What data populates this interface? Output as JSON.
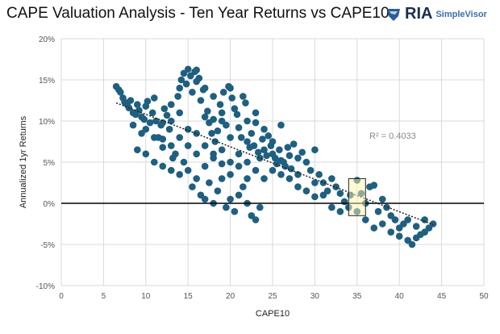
{
  "header": {
    "title": "CAPE Valuation Analysis - Ten Year Returns vs CAPE10",
    "brand": "RIA",
    "brand_sub": "SimpleVisor"
  },
  "chart_data": {
    "type": "scatter",
    "title": "CAPE Valuation Analysis - Ten Year Returns vs CAPE10",
    "xlabel": "CAPE10",
    "ylabel": "Annualized 1yr Returns",
    "xlim": [
      0,
      50
    ],
    "ylim": [
      -10,
      20
    ],
    "xticks": [
      0,
      5,
      10,
      15,
      20,
      25,
      30,
      35,
      40,
      45,
      50
    ],
    "yticks": [
      -10,
      -5,
      0,
      5,
      10,
      15,
      20
    ],
    "ytick_labels": [
      "-10%",
      "-5%",
      "0%",
      "5%",
      "10%",
      "15%",
      "20%"
    ],
    "grid": true,
    "point_color": "#1f5f80",
    "trendline": {
      "type": "linear",
      "x": [
        6.5,
        44
      ],
      "y": [
        12.2,
        -2.6
      ],
      "r2_label": "R² = 0.4033"
    },
    "highlight_box": {
      "x": [
        34,
        36
      ],
      "y": [
        -1.5,
        3
      ]
    },
    "points": [
      [
        6.5,
        14.2
      ],
      [
        6.8,
        13.8
      ],
      [
        7,
        13.5
      ],
      [
        7.3,
        12.8
      ],
      [
        7.5,
        12.3
      ],
      [
        7.8,
        12
      ],
      [
        8,
        11.6
      ],
      [
        8.2,
        12.5
      ],
      [
        8.5,
        11
      ],
      [
        8.8,
        10.8
      ],
      [
        9,
        12
      ],
      [
        9.2,
        11.3
      ],
      [
        9.5,
        10.5
      ],
      [
        9.8,
        10.2
      ],
      [
        10,
        11.8
      ],
      [
        10.2,
        12.4
      ],
      [
        10.5,
        9.8
      ],
      [
        10.8,
        11
      ],
      [
        11,
        12.8
      ],
      [
        11.2,
        10
      ],
      [
        11.5,
        8
      ],
      [
        11.8,
        9.5
      ],
      [
        12,
        7.8
      ],
      [
        12.2,
        11.5
      ],
      [
        12.5,
        10.7
      ],
      [
        12.8,
        9
      ],
      [
        13,
        12
      ],
      [
        13.2,
        5.5
      ],
      [
        13.5,
        6
      ],
      [
        13.8,
        13
      ],
      [
        14,
        14
      ],
      [
        14.2,
        15
      ],
      [
        14.5,
        15.8
      ],
      [
        14.8,
        14.5
      ],
      [
        15,
        16.3
      ],
      [
        15.3,
        15.5
      ],
      [
        15.5,
        13.5
      ],
      [
        15.8,
        16
      ],
      [
        16,
        14.8
      ],
      [
        16.3,
        15.2
      ],
      [
        16.5,
        12.5
      ],
      [
        16.8,
        13.8
      ],
      [
        17,
        10.5
      ],
      [
        17.3,
        11.2
      ],
      [
        17.5,
        9.8
      ],
      [
        17.8,
        8.5
      ],
      [
        18,
        10.2
      ],
      [
        18.2,
        7.5
      ],
      [
        18.5,
        8.8
      ],
      [
        18.8,
        12
      ],
      [
        19,
        11
      ],
      [
        19.2,
        13.5
      ],
      [
        19.5,
        9.5
      ],
      [
        19.8,
        14.2
      ],
      [
        20,
        14
      ],
      [
        20.2,
        12.8
      ],
      [
        20.5,
        11.5
      ],
      [
        20.8,
        10.8
      ],
      [
        21,
        9.2
      ],
      [
        21.3,
        8
      ],
      [
        21.5,
        13
      ],
      [
        21.8,
        12.2
      ],
      [
        22,
        7.5
      ],
      [
        22.3,
        6.8
      ],
      [
        22.5,
        8.5
      ],
      [
        22.8,
        7
      ],
      [
        23,
        9.8
      ],
      [
        23.3,
        6.2
      ],
      [
        23.5,
        5.5
      ],
      [
        23.8,
        7.8
      ],
      [
        24,
        6.5
      ],
      [
        24.3,
        5.8
      ],
      [
        24.5,
        8.2
      ],
      [
        24.8,
        7
      ],
      [
        25,
        6
      ],
      [
        25.3,
        5.5
      ],
      [
        25.5,
        4.8
      ],
      [
        25.8,
        6.5
      ],
      [
        26,
        5.2
      ],
      [
        26.3,
        5
      ],
      [
        26.5,
        4.5
      ],
      [
        26.8,
        6.8
      ],
      [
        27,
        5.8
      ],
      [
        27.2,
        4.2
      ],
      [
        27.5,
        7.2
      ],
      [
        28,
        5.5
      ],
      [
        28.5,
        6.2
      ],
      [
        29,
        5
      ],
      [
        29.5,
        4
      ],
      [
        30,
        6.5
      ],
      [
        30.5,
        3.5
      ],
      [
        31,
        2.5
      ],
      [
        31.5,
        1.5
      ],
      [
        32,
        3
      ],
      [
        32.5,
        2
      ],
      [
        33,
        1.2
      ],
      [
        33.5,
        0.2
      ],
      [
        34,
        -0.5
      ],
      [
        34.2,
        1
      ],
      [
        35,
        2.8
      ],
      [
        35.5,
        1.2
      ],
      [
        36,
        0
      ],
      [
        36.5,
        2
      ],
      [
        37,
        2.2
      ],
      [
        37.5,
        -1
      ],
      [
        38,
        0.5
      ],
      [
        38.5,
        -0.5
      ],
      [
        39,
        -1.5
      ],
      [
        39.5,
        -2
      ],
      [
        40,
        -3
      ],
      [
        40.5,
        -2.5
      ],
      [
        41,
        -4.5
      ],
      [
        41.5,
        -5
      ],
      [
        42,
        -2.8
      ],
      [
        42.5,
        -3.8
      ],
      [
        43,
        -2
      ],
      [
        43.5,
        -3
      ],
      [
        44,
        -2.5
      ],
      [
        9,
        6.5
      ],
      [
        10,
        6
      ],
      [
        11,
        5
      ],
      [
        12,
        4.5
      ],
      [
        13,
        4
      ],
      [
        14,
        3.5
      ],
      [
        14.5,
        5
      ],
      [
        15,
        4
      ],
      [
        15.5,
        2
      ],
      [
        16,
        3
      ],
      [
        16.5,
        1
      ],
      [
        17,
        0.5
      ],
      [
        17.5,
        2.5
      ],
      [
        18,
        0
      ],
      [
        18.5,
        1.5
      ],
      [
        19,
        3
      ],
      [
        19.5,
        -0.5
      ],
      [
        20,
        0.5
      ],
      [
        20.5,
        -1
      ],
      [
        21,
        1
      ],
      [
        21.5,
        2
      ],
      [
        22,
        0
      ],
      [
        22.5,
        -1.5
      ],
      [
        23,
        -2
      ],
      [
        23.5,
        -0.5
      ],
      [
        22,
        3
      ],
      [
        21,
        4.5
      ],
      [
        20,
        5
      ],
      [
        19,
        6.5
      ],
      [
        18,
        5.5
      ],
      [
        17,
        4.5
      ],
      [
        16,
        6
      ],
      [
        15,
        7
      ],
      [
        14,
        8
      ],
      [
        13,
        7
      ],
      [
        12,
        6.8
      ],
      [
        11,
        8
      ],
      [
        10,
        9
      ],
      [
        9.5,
        8.5
      ],
      [
        8.5,
        9.5
      ],
      [
        15,
        9
      ],
      [
        16,
        8.5
      ],
      [
        17,
        7
      ],
      [
        18,
        6
      ],
      [
        19,
        4.8
      ],
      [
        20,
        3.5
      ],
      [
        21,
        6
      ],
      [
        22,
        5
      ],
      [
        23,
        4
      ],
      [
        24,
        3
      ],
      [
        25,
        4
      ],
      [
        26,
        3.5
      ],
      [
        27,
        3
      ],
      [
        28,
        2
      ],
      [
        29,
        1.5
      ],
      [
        30,
        0.8
      ],
      [
        31,
        1
      ],
      [
        32,
        -0.5
      ],
      [
        33,
        -1
      ],
      [
        35,
        -1
      ],
      [
        36,
        -2
      ],
      [
        37,
        -3
      ],
      [
        38,
        -2.5
      ],
      [
        39,
        -3.5
      ],
      [
        40,
        -4
      ],
      [
        41,
        -2
      ],
      [
        42,
        -4.2
      ],
      [
        43,
        -3.5
      ],
      [
        28,
        3.5
      ],
      [
        30,
        2.5
      ],
      [
        24,
        9
      ],
      [
        25,
        7.5
      ],
      [
        26,
        9.5
      ],
      [
        23,
        11
      ],
      [
        22,
        10
      ],
      [
        20,
        8
      ],
      [
        19,
        10
      ],
      [
        18,
        13
      ],
      [
        17,
        14
      ],
      [
        16,
        16.2
      ],
      [
        14,
        11
      ],
      [
        13,
        10
      ],
      [
        12,
        9.8
      ]
    ]
  }
}
